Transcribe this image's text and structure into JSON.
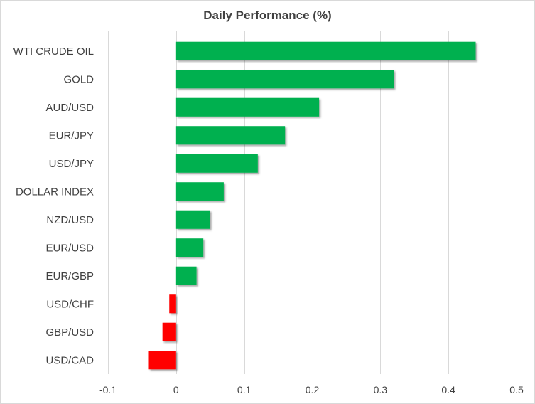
{
  "chart_data": {
    "type": "bar",
    "orientation": "horizontal",
    "title": "Daily Performance  (%)",
    "categories": [
      "WTI CRUDE OIL",
      "GOLD",
      "AUD/USD",
      "EUR/JPY",
      "USD/JPY",
      "DOLLAR INDEX",
      "NZD/USD",
      "EUR/USD",
      "EUR/GBP",
      "USD/CHF",
      "GBP/USD",
      "USD/CAD"
    ],
    "values": [
      0.44,
      0.32,
      0.21,
      0.16,
      0.12,
      0.07,
      0.05,
      0.04,
      0.03,
      -0.01,
      -0.02,
      -0.04
    ],
    "xlim": [
      -0.1,
      0.5
    ],
    "xticks": [
      -0.1,
      0,
      0.1,
      0.2,
      0.3,
      0.4,
      0.5
    ],
    "xtick_labels": [
      "-0.1",
      "0",
      "0.1",
      "0.2",
      "0.3",
      "0.4",
      "0.5"
    ],
    "grid": true,
    "legend": "none",
    "colors": {
      "positive": "#00b050",
      "negative": "#ff0000",
      "grid": "#d9d9d9",
      "text": "#404040"
    }
  }
}
